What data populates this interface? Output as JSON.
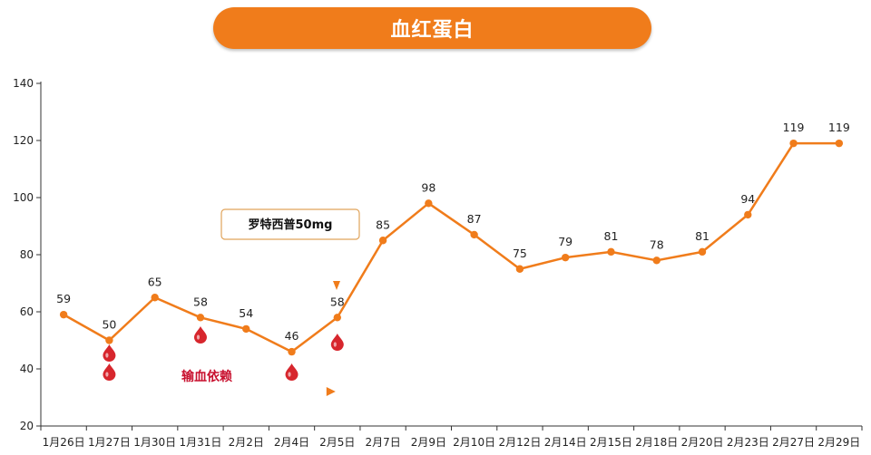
{
  "header": {
    "title": "血红蛋白"
  },
  "colors": {
    "line": "#f07c1b",
    "title_bg": "#f07c1b",
    "drop": "#d7262d",
    "annotation_text": "#c8102e"
  },
  "chart_data": {
    "type": "line",
    "title": "血红蛋白",
    "xlabel": "",
    "ylabel": "",
    "ylim": [
      20,
      140
    ],
    "yticks": [
      20,
      40,
      60,
      80,
      100,
      120,
      140
    ],
    "grid": false,
    "categories": [
      "1月26日",
      "1月27日",
      "1月30日",
      "1月31日",
      "2月2日",
      "2月4日",
      "2月5日",
      "2月7日",
      "2月9日",
      "2月10日",
      "2月12日",
      "2月14日",
      "2月15日",
      "2月18日",
      "2月20日",
      "2月23日",
      "2月27日",
      "2月29日"
    ],
    "series": [
      {
        "values": [
          59,
          50,
          65,
          58,
          54,
          46,
          58,
          85,
          98,
          87,
          75,
          79,
          81,
          78,
          81,
          94,
          119,
          119
        ]
      }
    ],
    "annotations": {
      "drug_box": {
        "text": "罗特西普50mg",
        "points_to": "2月5日"
      },
      "transfusion": {
        "text": "输血依赖",
        "end": "2月5日"
      },
      "blood_drop_icons": [
        {
          "at": "1月27日",
          "count": 2
        },
        {
          "at": "1月31日",
          "count": 1
        },
        {
          "at": "2月4日",
          "count": 1
        },
        {
          "at": "2月5日",
          "count": 1
        }
      ]
    }
  }
}
